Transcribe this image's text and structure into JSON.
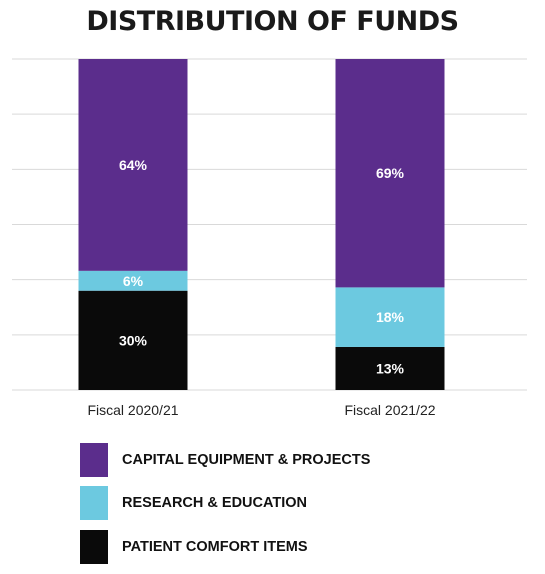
{
  "title": "DISTRIBUTION OF FUNDS",
  "chart_data": {
    "type": "bar",
    "stacked": true,
    "title": "DISTRIBUTION OF FUNDS",
    "categories": [
      "Fiscal 2020/21",
      "Fiscal 2021/22"
    ],
    "series": [
      {
        "name": "PATIENT COMFORT ITEMS",
        "values": [
          30,
          13
        ],
        "labels": [
          "30%",
          "13%"
        ],
        "color": "#0a0a0a"
      },
      {
        "name": "RESEARCH & EDUCATION",
        "values": [
          6,
          18
        ],
        "labels": [
          "6%",
          "18%"
        ],
        "color": "#6cc9e0"
      },
      {
        "name": "CAPITAL EQUIPMENT & PROJECTS",
        "values": [
          64,
          69
        ],
        "labels": [
          "64%",
          "69%"
        ],
        "color": "#5b2d8c"
      }
    ],
    "ylim": [
      0,
      100
    ],
    "xlabel": "",
    "ylabel": "",
    "grid": true,
    "legend_position": "bottom"
  },
  "legend": [
    {
      "label": "CAPITAL EQUIPMENT & PROJECTS",
      "color": "#5b2d8c"
    },
    {
      "label": "RESEARCH & EDUCATION",
      "color": "#6cc9e0"
    },
    {
      "label": "PATIENT COMFORT ITEMS",
      "color": "#0a0a0a"
    }
  ]
}
